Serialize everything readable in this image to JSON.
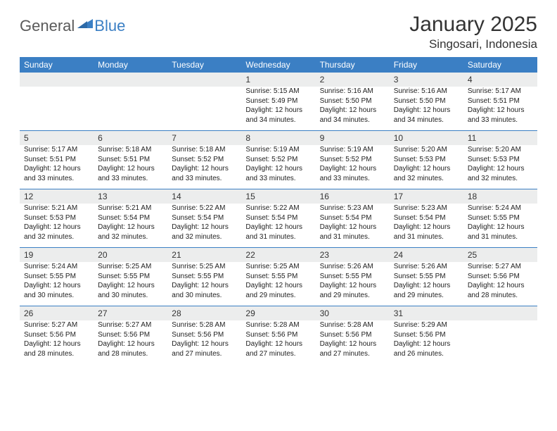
{
  "logo": {
    "text1": "General",
    "text2": "Blue"
  },
  "title": "January 2025",
  "location": "Singosari, Indonesia",
  "colors": {
    "header_bg": "#3b7fc4",
    "header_text": "#ffffff",
    "daynum_bg": "#eceded",
    "border": "#3b7fc4",
    "body_text": "#222222",
    "logo_gray": "#5a5a5a",
    "logo_blue": "#3b7fc4"
  },
  "weekdays": [
    "Sunday",
    "Monday",
    "Tuesday",
    "Wednesday",
    "Thursday",
    "Friday",
    "Saturday"
  ],
  "weeks": [
    {
      "nums": [
        "",
        "",
        "",
        "1",
        "2",
        "3",
        "4"
      ],
      "cells": [
        "",
        "",
        "",
        "Sunrise: 5:15 AM\nSunset: 5:49 PM\nDaylight: 12 hours and 34 minutes.",
        "Sunrise: 5:16 AM\nSunset: 5:50 PM\nDaylight: 12 hours and 34 minutes.",
        "Sunrise: 5:16 AM\nSunset: 5:50 PM\nDaylight: 12 hours and 34 minutes.",
        "Sunrise: 5:17 AM\nSunset: 5:51 PM\nDaylight: 12 hours and 33 minutes."
      ]
    },
    {
      "nums": [
        "5",
        "6",
        "7",
        "8",
        "9",
        "10",
        "11"
      ],
      "cells": [
        "Sunrise: 5:17 AM\nSunset: 5:51 PM\nDaylight: 12 hours and 33 minutes.",
        "Sunrise: 5:18 AM\nSunset: 5:51 PM\nDaylight: 12 hours and 33 minutes.",
        "Sunrise: 5:18 AM\nSunset: 5:52 PM\nDaylight: 12 hours and 33 minutes.",
        "Sunrise: 5:19 AM\nSunset: 5:52 PM\nDaylight: 12 hours and 33 minutes.",
        "Sunrise: 5:19 AM\nSunset: 5:52 PM\nDaylight: 12 hours and 33 minutes.",
        "Sunrise: 5:20 AM\nSunset: 5:53 PM\nDaylight: 12 hours and 32 minutes.",
        "Sunrise: 5:20 AM\nSunset: 5:53 PM\nDaylight: 12 hours and 32 minutes."
      ]
    },
    {
      "nums": [
        "12",
        "13",
        "14",
        "15",
        "16",
        "17",
        "18"
      ],
      "cells": [
        "Sunrise: 5:21 AM\nSunset: 5:53 PM\nDaylight: 12 hours and 32 minutes.",
        "Sunrise: 5:21 AM\nSunset: 5:54 PM\nDaylight: 12 hours and 32 minutes.",
        "Sunrise: 5:22 AM\nSunset: 5:54 PM\nDaylight: 12 hours and 32 minutes.",
        "Sunrise: 5:22 AM\nSunset: 5:54 PM\nDaylight: 12 hours and 31 minutes.",
        "Sunrise: 5:23 AM\nSunset: 5:54 PM\nDaylight: 12 hours and 31 minutes.",
        "Sunrise: 5:23 AM\nSunset: 5:54 PM\nDaylight: 12 hours and 31 minutes.",
        "Sunrise: 5:24 AM\nSunset: 5:55 PM\nDaylight: 12 hours and 31 minutes."
      ]
    },
    {
      "nums": [
        "19",
        "20",
        "21",
        "22",
        "23",
        "24",
        "25"
      ],
      "cells": [
        "Sunrise: 5:24 AM\nSunset: 5:55 PM\nDaylight: 12 hours and 30 minutes.",
        "Sunrise: 5:25 AM\nSunset: 5:55 PM\nDaylight: 12 hours and 30 minutes.",
        "Sunrise: 5:25 AM\nSunset: 5:55 PM\nDaylight: 12 hours and 30 minutes.",
        "Sunrise: 5:25 AM\nSunset: 5:55 PM\nDaylight: 12 hours and 29 minutes.",
        "Sunrise: 5:26 AM\nSunset: 5:55 PM\nDaylight: 12 hours and 29 minutes.",
        "Sunrise: 5:26 AM\nSunset: 5:55 PM\nDaylight: 12 hours and 29 minutes.",
        "Sunrise: 5:27 AM\nSunset: 5:56 PM\nDaylight: 12 hours and 28 minutes."
      ]
    },
    {
      "nums": [
        "26",
        "27",
        "28",
        "29",
        "30",
        "31",
        ""
      ],
      "cells": [
        "Sunrise: 5:27 AM\nSunset: 5:56 PM\nDaylight: 12 hours and 28 minutes.",
        "Sunrise: 5:27 AM\nSunset: 5:56 PM\nDaylight: 12 hours and 28 minutes.",
        "Sunrise: 5:28 AM\nSunset: 5:56 PM\nDaylight: 12 hours and 27 minutes.",
        "Sunrise: 5:28 AM\nSunset: 5:56 PM\nDaylight: 12 hours and 27 minutes.",
        "Sunrise: 5:28 AM\nSunset: 5:56 PM\nDaylight: 12 hours and 27 minutes.",
        "Sunrise: 5:29 AM\nSunset: 5:56 PM\nDaylight: 12 hours and 26 minutes.",
        ""
      ]
    }
  ]
}
